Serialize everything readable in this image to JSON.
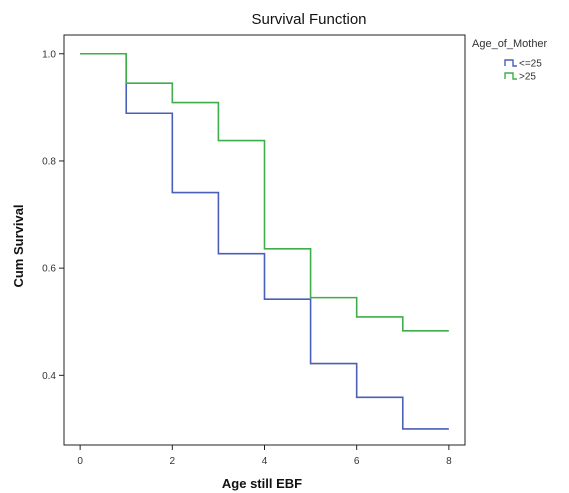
{
  "chart_data": {
    "type": "line",
    "step": true,
    "title": "Survival Function",
    "xlabel": "Age still EBF",
    "ylabel": "Cum Survival",
    "xlim": [
      -0.35,
      8.35
    ],
    "ylim": [
      0.27,
      1.035
    ],
    "x_ticks": [
      0,
      2,
      4,
      6,
      8
    ],
    "x_tick_labels": [
      "0",
      "2",
      "4",
      "6",
      "8"
    ],
    "y_ticks": [
      1.0,
      0.8,
      0.6,
      0.4
    ],
    "y_tick_labels": [
      "1.0",
      "0.8",
      "0.6",
      "0.4"
    ],
    "grid": false,
    "legend": {
      "title": "Age_of_Mother",
      "placement": "top-right"
    },
    "series": [
      {
        "name": "<=25",
        "color": "#4a5fb8",
        "x": [
          0,
          1,
          2,
          3,
          4,
          5,
          6,
          7,
          8
        ],
        "y": [
          1.0,
          0.889,
          0.741,
          0.627,
          0.542,
          0.422,
          0.359,
          0.3,
          0.3
        ]
      },
      {
        "name": ">25",
        "color": "#3fae4a",
        "x": [
          0,
          1,
          2,
          3,
          4,
          5,
          6,
          7,
          8
        ],
        "y": [
          1.0,
          0.945,
          0.909,
          0.838,
          0.636,
          0.545,
          0.509,
          0.483,
          0.483
        ]
      }
    ]
  }
}
